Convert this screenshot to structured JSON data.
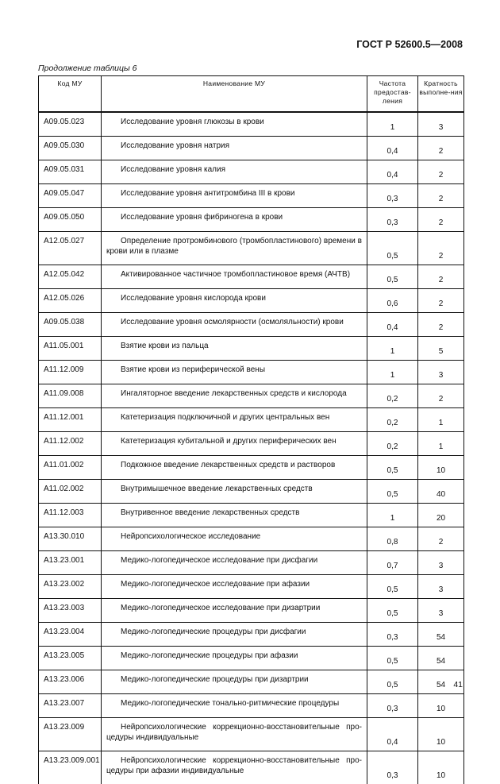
{
  "header": {
    "doc_code": "ГОСТ Р 52600.5—2008"
  },
  "caption": "Продолжение таблицы 6",
  "table": {
    "columns": [
      "Код МУ",
      "Наименование МУ",
      "Частота предостав-ления",
      "Кратность выполне-ния"
    ],
    "rows": [
      {
        "code": "A09.05.023",
        "name": "Исследование уровня глюкозы в крови",
        "freq": "1",
        "mult": "3"
      },
      {
        "code": "A09.05.030",
        "name": "Исследование уровня натрия",
        "freq": "0,4",
        "mult": "2"
      },
      {
        "code": "A09.05.031",
        "name": "Исследование уровня калия",
        "freq": "0,4",
        "mult": "2"
      },
      {
        "code": "A09.05.047",
        "name": "Исследование уровня антитромбина III в крови",
        "freq": "0,3",
        "mult": "2"
      },
      {
        "code": "A09.05.050",
        "name": "Исследование уровня фибриногена в крови",
        "freq": "0,3",
        "mult": "2"
      },
      {
        "code": "A12.05.027",
        "name": "Определение протромбинового (тромбопластинового) времени в крови или в плазме",
        "freq": "0,5",
        "mult": "2",
        "two": true
      },
      {
        "code": "A12.05.042",
        "name": "Активированное частичное тромбопластиновое время (АЧТВ)",
        "freq": "0,5",
        "mult": "2"
      },
      {
        "code": "A12.05.026",
        "name": "Исследование уровня кислорода крови",
        "freq": "0,6",
        "mult": "2"
      },
      {
        "code": "A09.05.038",
        "name": "Исследование уровня осмолярности (осмоляльности) крови",
        "freq": "0,4",
        "mult": "2"
      },
      {
        "code": "A11.05.001",
        "name": "Взятие крови из пальца",
        "freq": "1",
        "mult": "5"
      },
      {
        "code": "A11.12.009",
        "name": "Взятие крови из периферической вены",
        "freq": "1",
        "mult": "3"
      },
      {
        "code": "A11.09.008",
        "name": "Ингаляторное введение лекарственных средств и кислорода",
        "freq": "0,2",
        "mult": "2"
      },
      {
        "code": "A11.12.001",
        "name": "Катетеризация подключичной и других центральных вен",
        "freq": "0,2",
        "mult": "1"
      },
      {
        "code": "A11.12.002",
        "name": "Катетеризация кубитальной и других периферических вен",
        "freq": "0,2",
        "mult": "1"
      },
      {
        "code": "A11.01.002",
        "name": "Подкожное введение лекарственных средств и растворов",
        "freq": "0,5",
        "mult": "10"
      },
      {
        "code": "A11.02.002",
        "name": "Внутримышечное введение лекарственных средств",
        "freq": "0,5",
        "mult": "40"
      },
      {
        "code": "A11.12.003",
        "name": "Внутривенное введение лекарственных средств",
        "freq": "1",
        "mult": "20"
      },
      {
        "code": "A13.30.010",
        "name": "Нейропсихологическое исследование",
        "freq": "0,8",
        "mult": "2"
      },
      {
        "code": "A13.23.001",
        "name": "Медико-логопедическое исследование при дисфагии",
        "freq": "0,7",
        "mult": "3"
      },
      {
        "code": "A13.23.002",
        "name": "Медико-логопедическое исследование при афазии",
        "freq": "0,5",
        "mult": "3"
      },
      {
        "code": "A13.23.003",
        "name": "Медико-логопедическое исследование при дизартрии",
        "freq": "0,5",
        "mult": "3"
      },
      {
        "code": "A13.23.004",
        "name": "Медико-логопедические процедуры при дисфагии",
        "freq": "0,3",
        "mult": "54"
      },
      {
        "code": "A13.23.005",
        "name": "Медико-логопедические процедуры при афазии",
        "freq": "0,5",
        "mult": "54"
      },
      {
        "code": "A13.23.006",
        "name": "Медико-логопедические процедуры при дизартрии",
        "freq": "0,5",
        "mult": "54"
      },
      {
        "code": "A13.23.007",
        "name": "Медико-логопедические тонально-ритмические процедуры",
        "freq": "0,3",
        "mult": "10"
      },
      {
        "code": "A13.23.009",
        "name": "Нейропсихологические коррекционно-восстановительные про-цедуры индивидуальные",
        "freq": "0,4",
        "mult": "10",
        "two": true
      },
      {
        "code": "A13.23.009.001",
        "name": "Нейропсихологические коррекционно-восстановительные про-цедуры при афазии индивидуальные",
        "freq": "0,3",
        "mult": "10",
        "two": true
      }
    ]
  },
  "footer": {
    "page_number": "41"
  }
}
